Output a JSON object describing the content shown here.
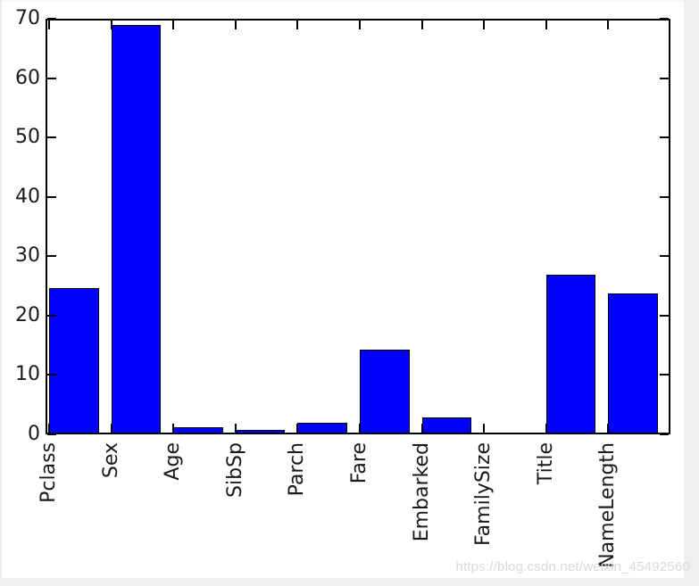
{
  "chart_data": {
    "type": "bar",
    "title": "",
    "xlabel": "",
    "ylabel": "",
    "categories": [
      "Pclass",
      "Sex",
      "Age",
      "SibSp",
      "Parch",
      "Fare",
      "Embarked",
      "FamilySize",
      "Title",
      "NameLength"
    ],
    "values": [
      24.6,
      68.9,
      1.2,
      0.75,
      2.0,
      14.2,
      2.8,
      0.25,
      26.9,
      23.7
    ],
    "ylim": [
      0,
      70
    ],
    "yticks": [
      0,
      10,
      20,
      30,
      40,
      50,
      60,
      70
    ],
    "grid": false,
    "legend": null,
    "bar_color": "#0000ff",
    "bar_edge_color": "#000000",
    "axis_color": "#000000",
    "tick_label_color": "#1a1a1a"
  },
  "watermark": {
    "text": "https://blog.csdn.net/weixin_45492560",
    "color": "#d9d9d9"
  },
  "page": {
    "background": "#ffffff",
    "margin_color": "#efefef"
  }
}
